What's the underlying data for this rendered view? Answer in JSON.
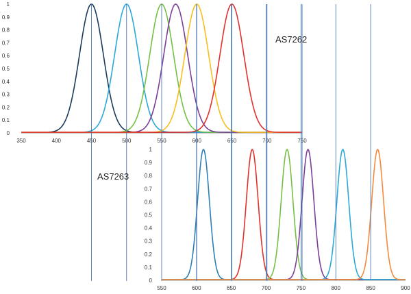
{
  "chart_data": [
    {
      "type": "line",
      "title": "AS7262",
      "xlabel": "",
      "ylabel": "",
      "xlim": [
        350,
        750
      ],
      "ylim": [
        0,
        1
      ],
      "grid": false,
      "x_ticks": [
        350,
        400,
        450,
        500,
        550,
        600,
        650,
        700,
        750
      ],
      "y_ticks": [
        0,
        0.1,
        0.2,
        0.3,
        0.4,
        0.5,
        0.6,
        0.7,
        0.8,
        0.9,
        1
      ],
      "vertical_markers": [
        450,
        500,
        550,
        600,
        650,
        700,
        750
      ],
      "series": [
        {
          "peak": 450,
          "fwhm": 40,
          "color": "#1b3a5c"
        },
        {
          "peak": 500,
          "fwhm": 40,
          "color": "#29a9d8"
        },
        {
          "peak": 550,
          "fwhm": 40,
          "color": "#74c043"
        },
        {
          "peak": 570,
          "fwhm": 40,
          "color": "#7b3f99"
        },
        {
          "peak": 600,
          "fwhm": 40,
          "color": "#f7be1c"
        },
        {
          "peak": 650,
          "fwhm": 40,
          "color": "#e2302b"
        }
      ]
    },
    {
      "type": "line",
      "title": "AS7263",
      "xlabel": "",
      "ylabel": "",
      "xlim": [
        550,
        900
      ],
      "ylim": [
        0,
        1
      ],
      "grid": false,
      "x_ticks": [
        550,
        600,
        650,
        700,
        750,
        800,
        850,
        900
      ],
      "y_ticks": [
        0,
        0.1,
        0.2,
        0.3,
        0.4,
        0.5,
        0.6,
        0.7,
        0.8,
        0.9,
        1
      ],
      "vertical_markers": [
        600,
        650,
        700,
        750,
        800,
        850
      ],
      "series": [
        {
          "peak": 610,
          "fwhm": 20,
          "color": "#2e7fb5"
        },
        {
          "peak": 680,
          "fwhm": 20,
          "color": "#e2302b"
        },
        {
          "peak": 730,
          "fwhm": 20,
          "color": "#74c043"
        },
        {
          "peak": 760,
          "fwhm": 20,
          "color": "#7b3f99"
        },
        {
          "peak": 810,
          "fwhm": 20,
          "color": "#29a9d8"
        },
        {
          "peak": 860,
          "fwhm": 20,
          "color": "#f58a3c"
        }
      ]
    }
  ]
}
